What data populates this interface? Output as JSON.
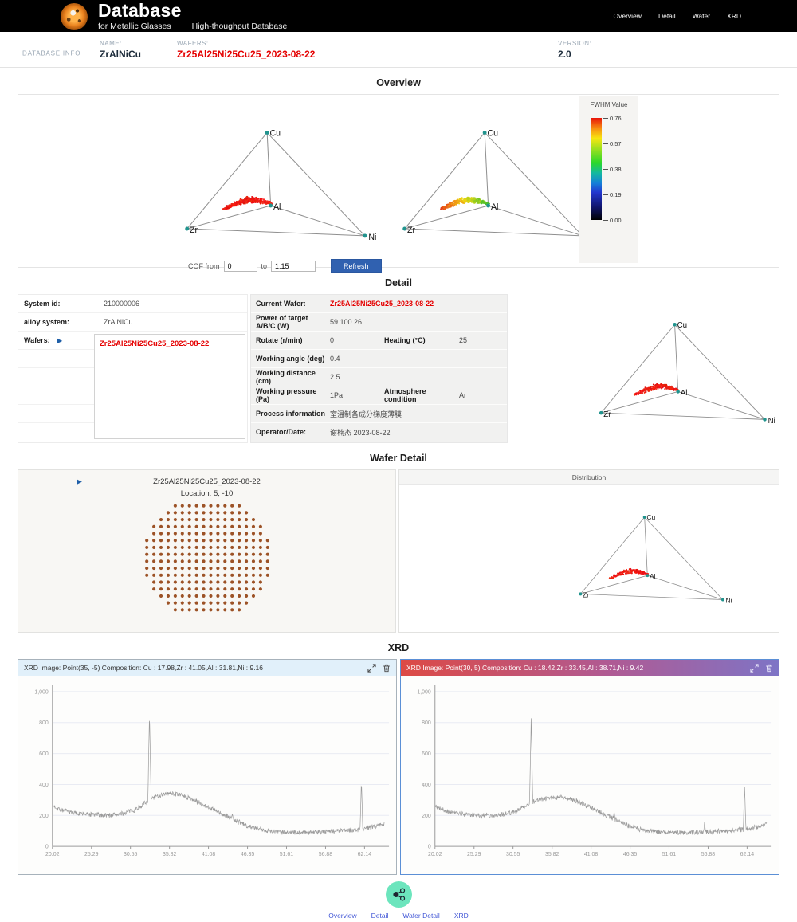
{
  "header": {
    "title": "Database",
    "subtitle": "for Metallic Glasses",
    "subtitle2": "High-thoughput Database",
    "nav": [
      "Overview",
      "Detail",
      "Wafer",
      "XRD"
    ]
  },
  "info_bar": {
    "section_label": "DATABASE INFO",
    "name_label": "NAME:",
    "name_value": "ZrAlNiCu",
    "wafers_label": "WAFERS:",
    "wafers_value": "Zr25Al25Ni25Cu25_2023-08-22",
    "version_label": "VERSION:",
    "version_value": "2.0"
  },
  "colors": {
    "accent_red": "#e50000",
    "link_blue": "#4156d6",
    "refresh_blue": "#3061b0",
    "vertex_teal": "#21948e",
    "edge_grey": "#8f8f8f",
    "wafer_dot": "#9c5226",
    "mint_button": "#6ce5bd",
    "xrd_line": "#9b9b9b"
  },
  "overview": {
    "title": "Overview",
    "legend": {
      "title": "FWHM Value",
      "ticks": [
        "0.76",
        "0.57",
        "0.38",
        "0.19",
        "0.00"
      ]
    },
    "cof": {
      "label": "COF from",
      "from": "0",
      "to_label": "to",
      "to": "1.15",
      "button": "Refresh"
    }
  },
  "tetrahedron": {
    "labels": {
      "top": "Cu",
      "left": "Zr",
      "right": "Ni",
      "center": "Al"
    },
    "diagrams": [
      {
        "id": "tetra-ov1",
        "color_mode": "red",
        "count": 300,
        "seed": 11
      },
      {
        "id": "tetra-ov2",
        "color_mode": "fwhm",
        "count": 300,
        "seed": 12
      },
      {
        "id": "tetra-detail",
        "color_mode": "red",
        "count": 240,
        "seed": 13
      },
      {
        "id": "tetra-dist",
        "color_mode": "red",
        "count": 260,
        "seed": 14
      }
    ]
  },
  "detail": {
    "title": "Detail",
    "info_rows": [
      {
        "label": "System id:",
        "value": "210000006"
      },
      {
        "label": "alloy system:",
        "value": "ZrAlNiCu"
      },
      {
        "label": "Wafers:",
        "value": ""
      }
    ],
    "wafer_list": [
      "Zr25Al25Ni25Cu25_2023-08-22"
    ],
    "params": [
      {
        "label": "Current Wafer:",
        "value": "Zr25Al25Ni25Cu25_2023-08-22",
        "red": true
      },
      {
        "label": "Power of target A/B/C (W)",
        "value": "59 100 26"
      },
      {
        "label": "Rotate  (r/min)",
        "value": "0",
        "label2": "Heating (°C)",
        "value2": "25"
      },
      {
        "label": "Working angle (deg)",
        "value": "0.4"
      },
      {
        "label": "Working distance (cm)",
        "value": "2.5"
      },
      {
        "label": "Working pressure (Pa)",
        "value": "1Pa",
        "label2": "Atmosphere condition",
        "value2": "Ar"
      },
      {
        "label": "Process information",
        "value": "室温制备成分梯度薄膜"
      },
      {
        "label": "Operator/Date:",
        "value": "谢楠杰 2023-08-22"
      }
    ]
  },
  "wafer_detail": {
    "title": "Wafer Detail",
    "wafer_title": "Zr25Al25Ni25Cu25_2023-08-22",
    "location": "Location: 5, -10",
    "distribution_title": "Distribution",
    "map": {
      "spacing_x": 8.6,
      "spacing_y": 8.4,
      "radius_sq": 81,
      "extent": 8.5,
      "dot_r": 2
    }
  },
  "xrd": {
    "title": "XRD",
    "panels": [
      {
        "header": "XRD Image:  Point(35, -5) Composition: Cu : 17.98,Zr : 41.05,Al : 31.81,Ni : 9.16",
        "theme": "blue"
      },
      {
        "header": "XRD Image:  Point(30, 5) Composition: Cu : 18.42,Zr : 33.45,Al : 38.71,Ni : 9.42",
        "theme": "red"
      }
    ]
  },
  "footer": {
    "links": [
      "Overview",
      "Detail",
      "Wafer Detail",
      "XRD"
    ]
  },
  "chart_data": [
    {
      "type": "line",
      "label": "XRD pattern at Point(35, -5)",
      "x_range": [
        20.02,
        64.8
      ],
      "y_range": [
        0,
        1000
      ],
      "x_ticks": [
        "20.02",
        "25.29",
        "30.55",
        "35.82",
        "41.08",
        "46.35",
        "51.61",
        "56.88",
        "62.14"
      ],
      "y_tick_labels": [
        "0",
        "200",
        "400",
        "600",
        "800",
        "1,000"
      ],
      "grid": "horizontal",
      "line_color": "#9b9b9b",
      "envelope": [
        [
          20.02,
          265
        ],
        [
          21,
          240
        ],
        [
          22,
          225
        ],
        [
          23.5,
          212
        ],
        [
          25,
          207
        ],
        [
          26.5,
          202
        ],
        [
          28,
          203
        ],
        [
          29.5,
          212
        ],
        [
          31,
          235
        ],
        [
          32,
          262
        ],
        [
          33,
          300
        ],
        [
          34,
          322
        ],
        [
          35,
          338
        ],
        [
          36,
          342
        ],
        [
          37,
          336
        ],
        [
          38,
          320
        ],
        [
          39,
          300
        ],
        [
          40,
          278
        ],
        [
          41,
          255
        ],
        [
          42,
          232
        ],
        [
          43,
          205
        ],
        [
          44,
          185
        ],
        [
          45,
          160
        ],
        [
          46,
          140
        ],
        [
          47,
          123
        ],
        [
          48,
          110
        ],
        [
          49,
          102
        ],
        [
          50,
          97
        ],
        [
          51.5,
          92
        ],
        [
          53,
          90
        ],
        [
          55,
          93
        ],
        [
          57,
          97
        ],
        [
          59,
          102
        ],
        [
          60.5,
          107
        ],
        [
          62,
          115
        ],
        [
          63,
          123
        ],
        [
          64,
          135
        ],
        [
          64.8,
          148
        ]
      ],
      "peaks": [
        {
          "x": 33.12,
          "y": 868,
          "w": 0.22
        },
        {
          "x": 44.3,
          "y": 212,
          "w": 0.12
        },
        {
          "x": 61.72,
          "y": 430,
          "w": 0.18
        }
      ],
      "noise": 15,
      "seed": 7
    },
    {
      "type": "line",
      "label": "XRD pattern at Point(30, 5)",
      "x_range": [
        20.02,
        64.8
      ],
      "y_range": [
        0,
        1000
      ],
      "x_ticks": [
        "20.02",
        "25.29",
        "30.55",
        "35.82",
        "41.08",
        "46.35",
        "51.61",
        "56.88",
        "62.14"
      ],
      "y_tick_labels": [
        "0",
        "200",
        "400",
        "600",
        "800",
        "1,000"
      ],
      "grid": "horizontal",
      "line_color": "#9b9b9b",
      "envelope": [
        [
          20.02,
          262
        ],
        [
          21,
          238
        ],
        [
          22,
          222
        ],
        [
          23.5,
          210
        ],
        [
          25,
          204
        ],
        [
          26.5,
          200
        ],
        [
          28,
          200
        ],
        [
          29.5,
          208
        ],
        [
          31,
          228
        ],
        [
          32,
          252
        ],
        [
          33,
          282
        ],
        [
          34,
          300
        ],
        [
          35,
          310
        ],
        [
          36,
          316
        ],
        [
          37,
          316
        ],
        [
          38,
          308
        ],
        [
          39,
          294
        ],
        [
          40,
          274
        ],
        [
          41,
          252
        ],
        [
          42,
          228
        ],
        [
          43,
          203
        ],
        [
          44,
          182
        ],
        [
          45,
          158
        ],
        [
          46,
          138
        ],
        [
          47,
          121
        ],
        [
          48,
          108
        ],
        [
          49,
          100
        ],
        [
          50,
          95
        ],
        [
          51.5,
          90
        ],
        [
          53,
          88
        ],
        [
          55,
          91
        ],
        [
          57,
          95
        ],
        [
          59,
          100
        ],
        [
          60.5,
          105
        ],
        [
          62,
          112
        ],
        [
          63,
          120
        ],
        [
          64,
          132
        ],
        [
          64.8,
          143
        ]
      ],
      "peaks": [
        {
          "x": 33.0,
          "y": 838,
          "w": 0.22
        },
        {
          "x": 44.2,
          "y": 228,
          "w": 0.12
        },
        {
          "x": 56.4,
          "y": 162,
          "w": 0.12
        },
        {
          "x": 61.8,
          "y": 388,
          "w": 0.18
        }
      ],
      "noise": 15,
      "seed": 21
    }
  ]
}
